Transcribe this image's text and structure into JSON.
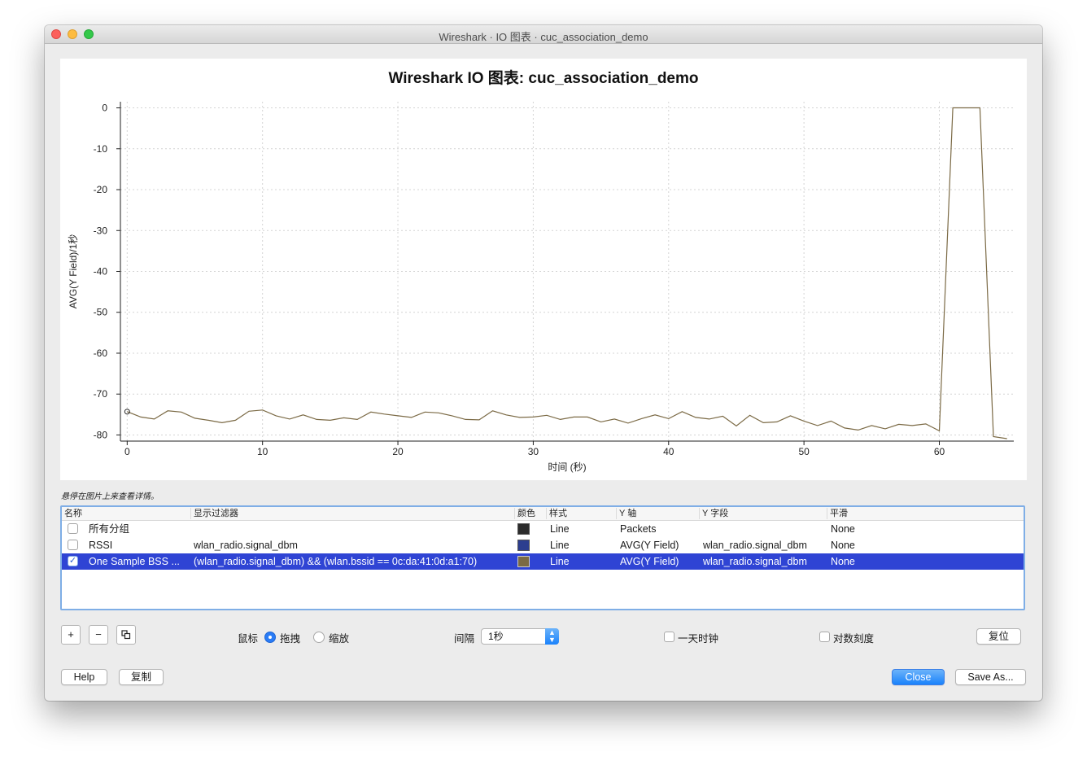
{
  "window": {
    "title": "Wireshark · IO 图表 · cuc_association_demo"
  },
  "chart": {
    "title": "Wireshark IO 图表: cuc_association_demo",
    "hint": "悬停在图片上来查看详情。"
  },
  "chart_data": {
    "type": "line",
    "title": "Wireshark IO 图表: cuc_association_demo",
    "xlabel": "时间 (秒)",
    "ylabel": "AVG(Y Field)/1秒",
    "xlim": [
      -0.5,
      65.5
    ],
    "ylim": [
      -81.5,
      1.5
    ],
    "x_ticks": [
      0,
      10,
      20,
      30,
      40,
      50,
      60
    ],
    "y_ticks": [
      0,
      -10,
      -20,
      -30,
      -40,
      -50,
      -60,
      -70,
      -80
    ],
    "grid": true,
    "series": [
      {
        "name": "One Sample BSS ...",
        "color": "#7b6a45",
        "x": [
          0,
          1,
          2,
          3,
          4,
          5,
          6,
          7,
          8,
          9,
          10,
          11,
          12,
          13,
          14,
          15,
          16,
          17,
          18,
          19,
          20,
          21,
          22,
          23,
          24,
          25,
          26,
          27,
          28,
          29,
          30,
          31,
          32,
          33,
          34,
          35,
          36,
          37,
          38,
          39,
          40,
          41,
          42,
          43,
          44,
          45,
          46,
          47,
          48,
          49,
          50,
          51,
          52,
          53,
          54,
          55,
          56,
          57,
          58,
          59,
          60,
          61,
          62,
          63,
          64,
          65
        ],
        "values": [
          -74.3,
          -75.6,
          -76.1,
          -74.1,
          -74.4,
          -75.9,
          -76.4,
          -77.0,
          -76.4,
          -74.2,
          -73.9,
          -75.3,
          -76.1,
          -75.1,
          -76.2,
          -76.4,
          -75.8,
          -76.2,
          -74.4,
          -74.9,
          -75.3,
          -75.7,
          -74.4,
          -74.6,
          -75.3,
          -76.2,
          -76.3,
          -74.1,
          -75.1,
          -75.7,
          -75.6,
          -75.2,
          -76.2,
          -75.6,
          -75.6,
          -76.8,
          -76.1,
          -77.1,
          -76.0,
          -75.1,
          -76.0,
          -74.3,
          -75.7,
          -76.1,
          -75.4,
          -77.8,
          -75.2,
          -77.0,
          -76.8,
          -75.3,
          -76.6,
          -77.7,
          -76.6,
          -78.3,
          -78.8,
          -77.7,
          -78.5,
          -77.4,
          -77.7,
          -77.3,
          -79.0,
          0,
          0,
          0,
          -80.4,
          -80.9
        ]
      }
    ]
  },
  "graphs_table": {
    "headers": [
      "名称",
      "显示过滤器",
      "颜色",
      "样式",
      "Y 轴",
      "Y 字段",
      "平滑"
    ],
    "rows": [
      {
        "enabled": false,
        "name": "所有分组",
        "filter": "",
        "color": "#2b2b2b",
        "style": "Line",
        "y_axis": "Packets",
        "y_field": "",
        "smooth": "None",
        "selected": false
      },
      {
        "enabled": false,
        "name": "RSSI",
        "filter": "wlan_radio.signal_dbm",
        "color": "#2c3e8f",
        "style": "Line",
        "y_axis": "AVG(Y Field)",
        "y_field": "wlan_radio.signal_dbm",
        "smooth": "None",
        "selected": false
      },
      {
        "enabled": true,
        "name": "One Sample BSS ...",
        "filter": "(wlan_radio.signal_dbm) && (wlan.bssid == 0c:da:41:0d:a1:70)",
        "color": "#7b6a45",
        "style": "Line",
        "y_axis": "AVG(Y Field)",
        "y_field": "wlan_radio.signal_dbm",
        "smooth": "None",
        "selected": true
      }
    ]
  },
  "controls": {
    "add_label": "+",
    "remove_label": "−",
    "copy_icon": "duplicate-icon",
    "mouse_label": "鼠标",
    "drag_label": "拖拽",
    "zoom_label": "缩放",
    "interval_label": "间隔",
    "interval_value": "1秒",
    "time_of_day_label": "一天时钟",
    "log_scale_label": "对数刻度",
    "reset_label": "复位"
  },
  "footer": {
    "help_label": "Help",
    "copy_label": "复制",
    "close_label": "Close",
    "save_as_label": "Save As..."
  }
}
